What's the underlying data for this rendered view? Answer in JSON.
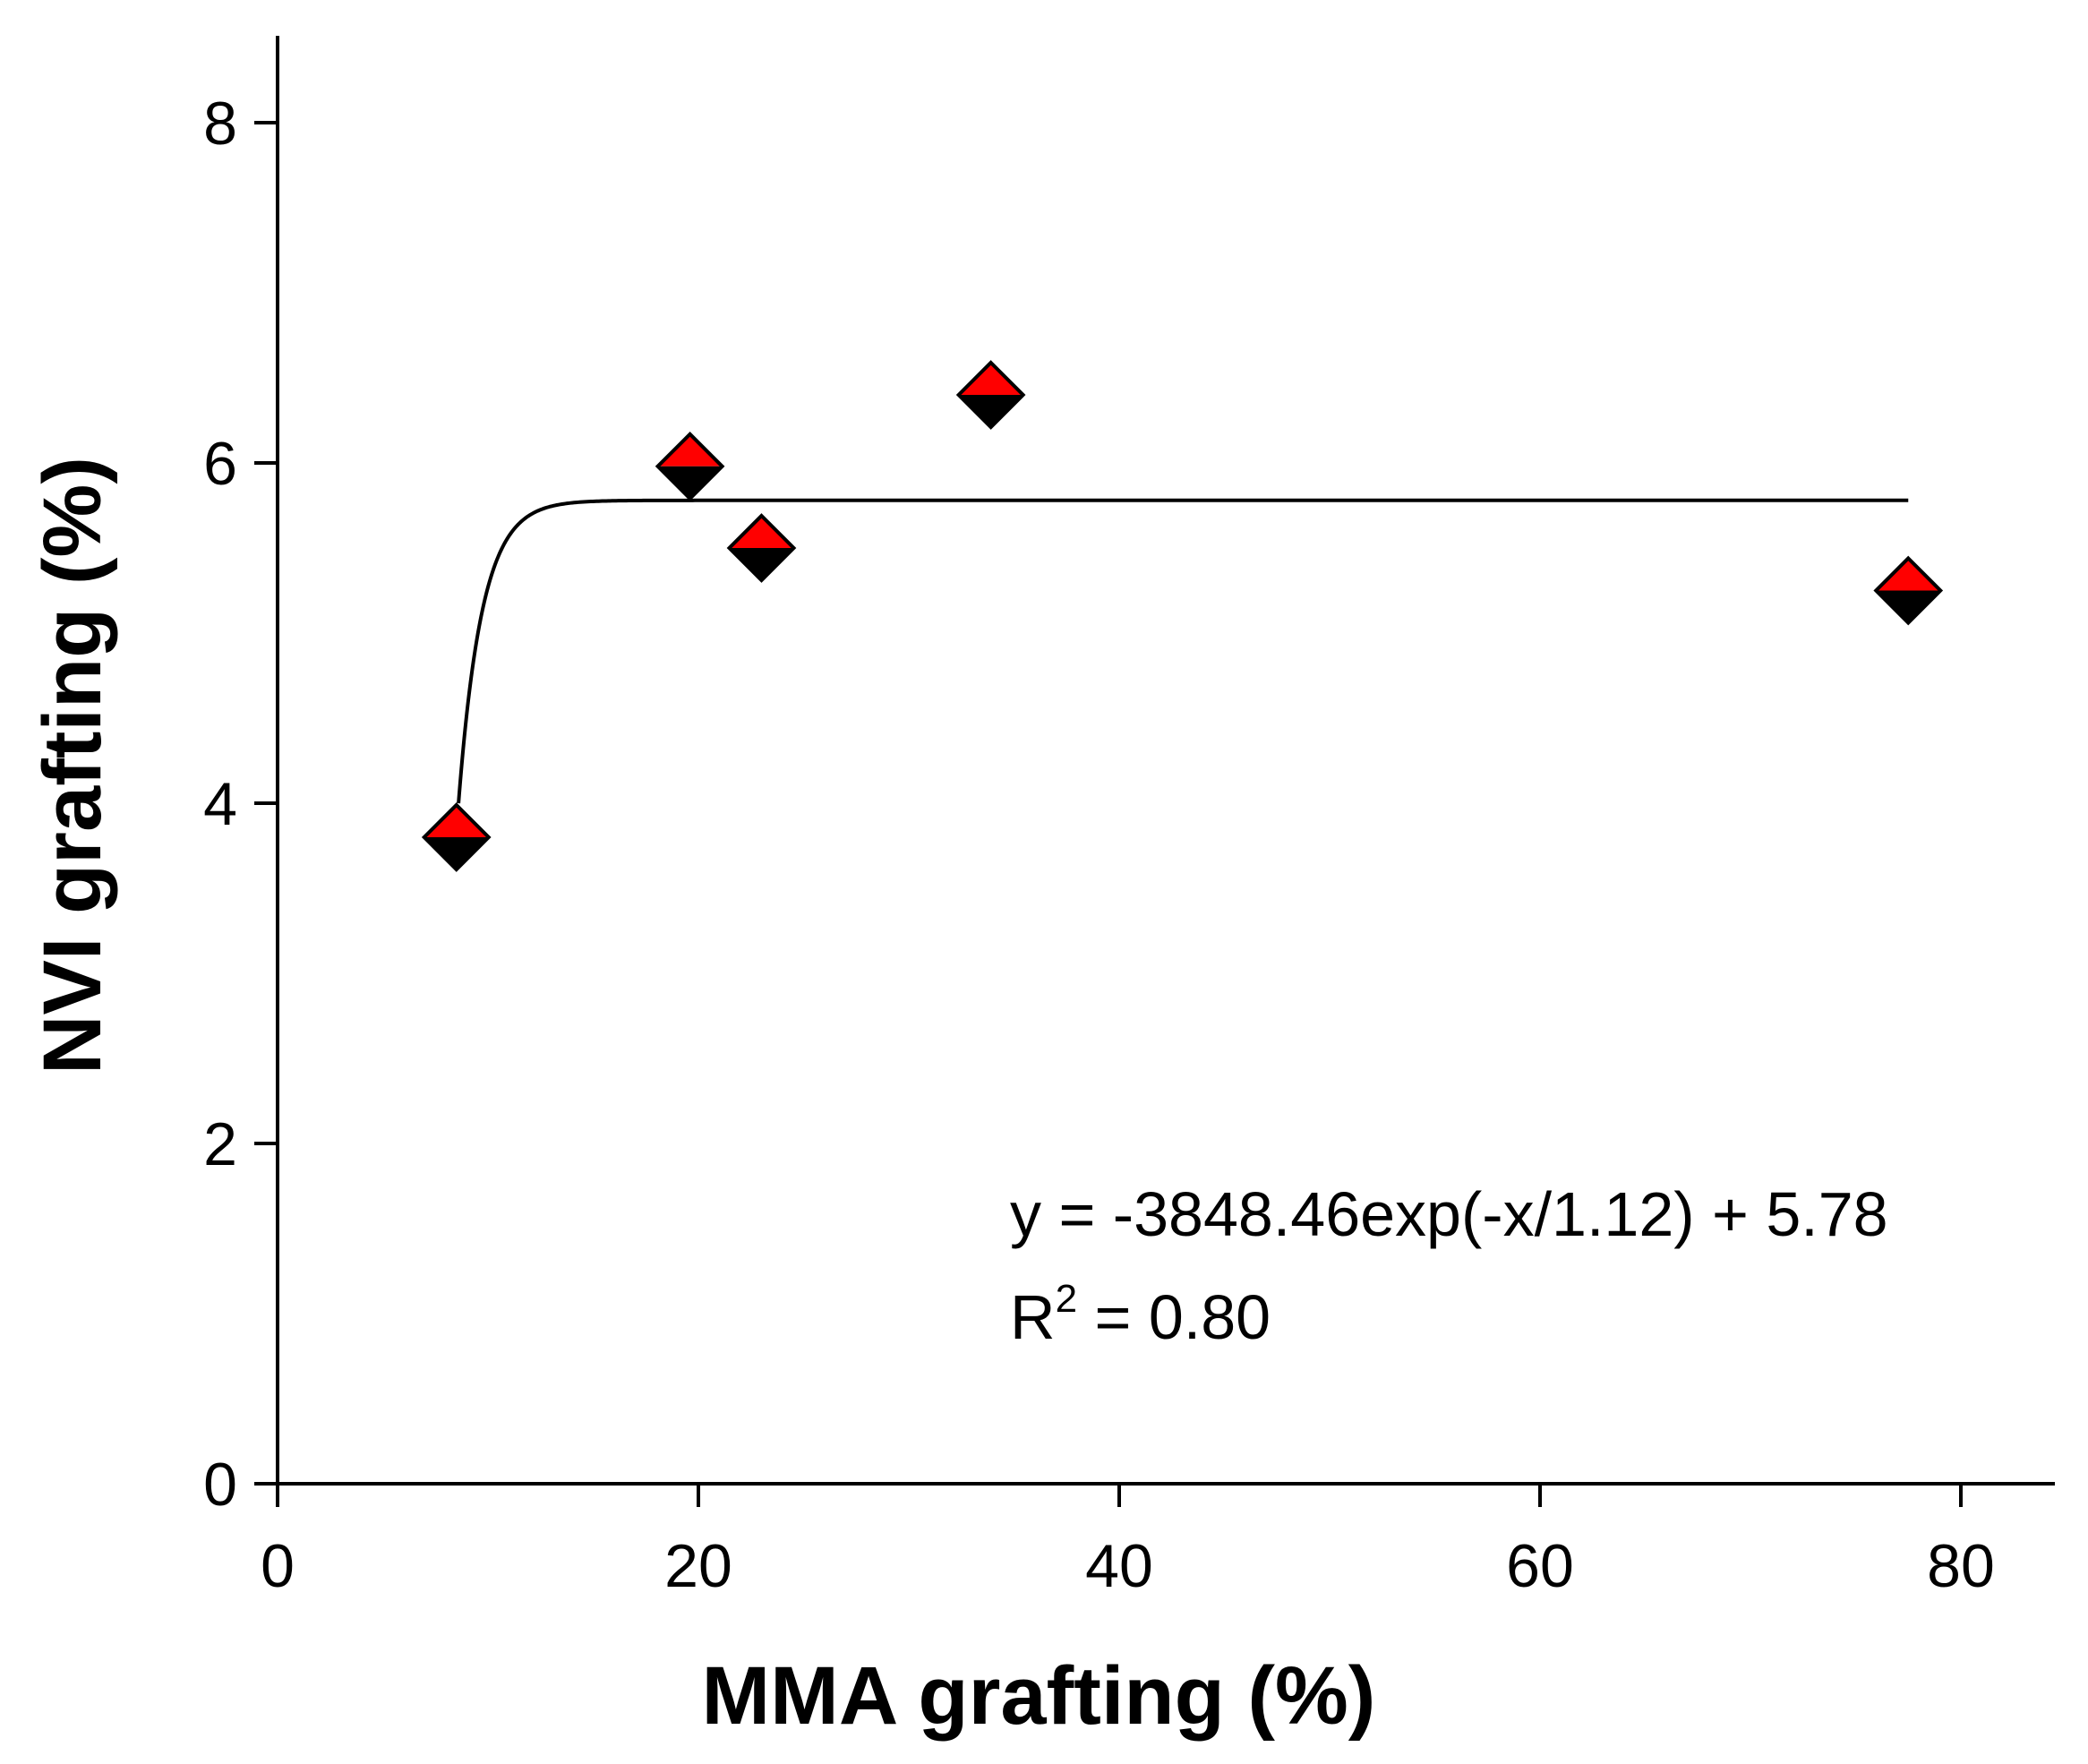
{
  "chart_data": {
    "type": "scatter",
    "title": "",
    "xlabel": "MMA grafting (%)",
    "ylabel": "NVI grafting (%)",
    "xlim": [
      0,
      85
    ],
    "ylim": [
      0,
      8.5
    ],
    "xticks": [
      0,
      20,
      40,
      60,
      80
    ],
    "yticks": [
      0,
      2,
      4,
      6,
      8
    ],
    "grid": false,
    "series": [
      {
        "name": "data",
        "marker": "diamond",
        "colors": {
          "top": "#ff0000",
          "bottom": "#000000"
        },
        "x": [
          8.5,
          19.6,
          23.0,
          33.9,
          77.5
        ],
        "y": [
          3.8,
          5.98,
          5.5,
          6.4,
          5.25
        ]
      }
    ],
    "fit": {
      "a": -3848.46,
      "t": 1.12,
      "c": 5.78,
      "x_range": [
        8.6,
        77.5
      ]
    },
    "annotations": {
      "equation": "y = -3848.46exp(-x/1.12) + 5.78",
      "r2_prefix": "R",
      "r2_sup": "2",
      "r2_suffix": " = 0.80"
    }
  }
}
